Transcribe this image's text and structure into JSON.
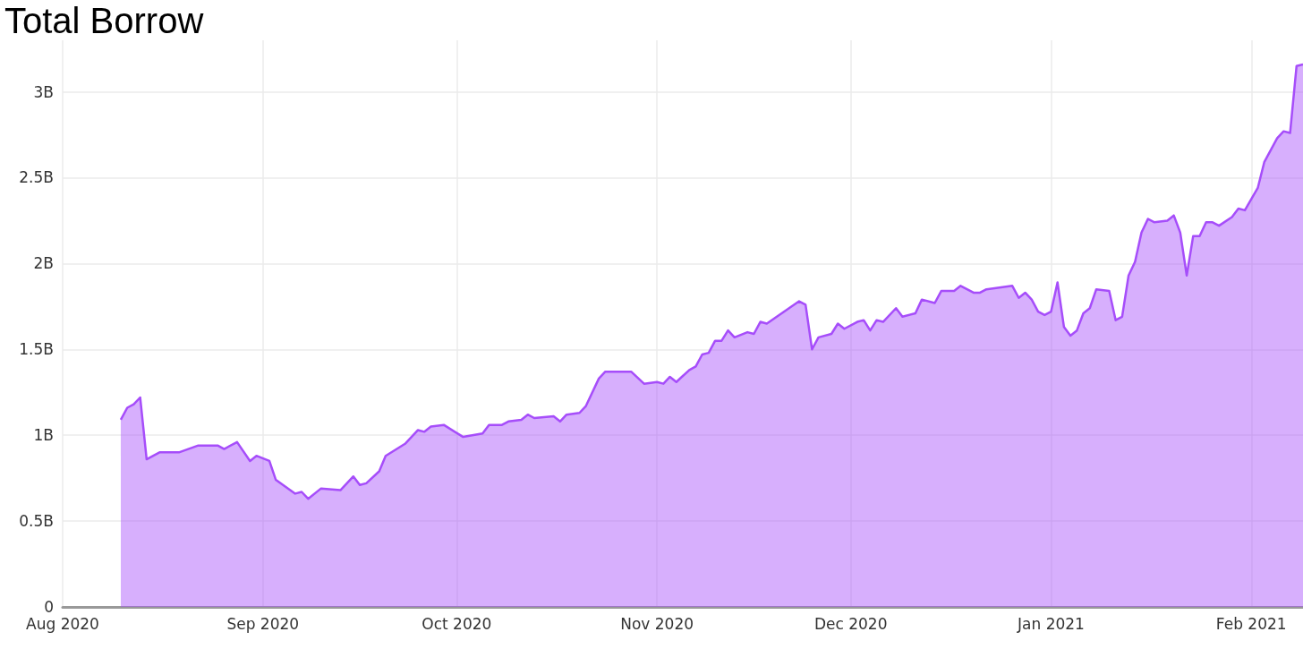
{
  "chart_data": {
    "type": "area",
    "title": "Total Borrow",
    "grid": true,
    "xlim": [
      "2020-08-01",
      "2021-02-09"
    ],
    "xticks": [
      {
        "value": "2020-08-01",
        "label": "Aug 2020"
      },
      {
        "value": "2020-09-01",
        "label": "Sep 2020"
      },
      {
        "value": "2020-10-01",
        "label": "Oct 2020"
      },
      {
        "value": "2020-11-01",
        "label": "Nov 2020"
      },
      {
        "value": "2020-12-01",
        "label": "Dec 2020"
      },
      {
        "value": "2021-01-01",
        "label": "Jan 2021"
      },
      {
        "value": "2021-02-01",
        "label": "Feb 2021"
      }
    ],
    "ylim": [
      0,
      3.3
    ],
    "yticks": [
      0,
      {
        "value": 0.5,
        "label": "0.5B"
      },
      {
        "value": 1,
        "label": "1B"
      },
      {
        "value": 1.5,
        "label": "1.5B"
      },
      {
        "value": 2,
        "label": "2B"
      },
      {
        "value": 2.5,
        "label": "2.5B"
      },
      {
        "value": 3,
        "label": "3B"
      }
    ],
    "x": [
      "2020-08-10",
      "2020-08-11",
      "2020-08-12",
      "2020-08-13",
      "2020-08-14",
      "2020-08-16",
      "2020-08-19",
      "2020-08-22",
      "2020-08-25",
      "2020-08-26",
      "2020-08-28",
      "2020-08-30",
      "2020-08-31",
      "2020-09-02",
      "2020-09-03",
      "2020-09-06",
      "2020-09-07",
      "2020-09-08",
      "2020-09-10",
      "2020-09-13",
      "2020-09-15",
      "2020-09-16",
      "2020-09-17",
      "2020-09-19",
      "2020-09-20",
      "2020-09-23",
      "2020-09-25",
      "2020-09-26",
      "2020-09-27",
      "2020-09-29",
      "2020-10-02",
      "2020-10-05",
      "2020-10-06",
      "2020-10-08",
      "2020-10-09",
      "2020-10-11",
      "2020-10-12",
      "2020-10-13",
      "2020-10-16",
      "2020-10-17",
      "2020-10-18",
      "2020-10-20",
      "2020-10-21",
      "2020-10-23",
      "2020-10-24",
      "2020-10-28",
      "2020-10-30",
      "2020-11-01",
      "2020-11-02",
      "2020-11-03",
      "2020-11-04",
      "2020-11-06",
      "2020-11-07",
      "2020-11-08",
      "2020-11-09",
      "2020-11-10",
      "2020-11-11",
      "2020-11-12",
      "2020-11-13",
      "2020-11-15",
      "2020-11-16",
      "2020-11-17",
      "2020-11-18",
      "2020-11-23",
      "2020-11-24",
      "2020-11-25",
      "2020-11-26",
      "2020-11-28",
      "2020-11-29",
      "2020-11-30",
      "2020-12-02",
      "2020-12-03",
      "2020-12-04",
      "2020-12-05",
      "2020-12-06",
      "2020-12-08",
      "2020-12-09",
      "2020-12-11",
      "2020-12-12",
      "2020-12-14",
      "2020-12-15",
      "2020-12-17",
      "2020-12-18",
      "2020-12-20",
      "2020-12-21",
      "2020-12-22",
      "2020-12-24",
      "2020-12-26",
      "2020-12-27",
      "2020-12-28",
      "2020-12-29",
      "2020-12-30",
      "2020-12-31",
      "2021-01-01",
      "2021-01-02",
      "2021-01-03",
      "2021-01-04",
      "2021-01-05",
      "2021-01-06",
      "2021-01-07",
      "2021-01-08",
      "2021-01-10",
      "2021-01-11",
      "2021-01-12",
      "2021-01-13",
      "2021-01-14",
      "2021-01-15",
      "2021-01-16",
      "2021-01-17",
      "2021-01-19",
      "2021-01-20",
      "2021-01-21",
      "2021-01-22",
      "2021-01-23",
      "2021-01-24",
      "2021-01-25",
      "2021-01-26",
      "2021-01-27",
      "2021-01-29",
      "2021-01-30",
      "2021-01-31",
      "2021-02-02",
      "2021-02-03",
      "2021-02-05",
      "2021-02-06",
      "2021-02-07",
      "2021-02-08",
      "2021-02-09"
    ],
    "series": [
      {
        "color": "#a64dfa",
        "values": [
          1.09,
          1.16,
          1.18,
          1.22,
          0.86,
          0.9,
          0.9,
          0.94,
          0.94,
          0.92,
          0.96,
          0.85,
          0.88,
          0.85,
          0.74,
          0.66,
          0.67,
          0.63,
          0.69,
          0.68,
          0.76,
          0.71,
          0.72,
          0.79,
          0.88,
          0.95,
          1.03,
          1.02,
          1.05,
          1.06,
          0.99,
          1.01,
          1.06,
          1.06,
          1.08,
          1.09,
          1.12,
          1.1,
          1.11,
          1.08,
          1.12,
          1.13,
          1.17,
          1.33,
          1.37,
          1.37,
          1.3,
          1.31,
          1.3,
          1.34,
          1.31,
          1.38,
          1.4,
          1.47,
          1.48,
          1.55,
          1.55,
          1.61,
          1.57,
          1.6,
          1.59,
          1.66,
          1.65,
          1.78,
          1.76,
          1.5,
          1.57,
          1.59,
          1.65,
          1.62,
          1.66,
          1.67,
          1.61,
          1.67,
          1.66,
          1.74,
          1.69,
          1.71,
          1.79,
          1.77,
          1.84,
          1.84,
          1.87,
          1.83,
          1.83,
          1.85,
          1.86,
          1.87,
          1.8,
          1.83,
          1.79,
          1.72,
          1.7,
          1.72,
          1.89,
          1.63,
          1.58,
          1.61,
          1.71,
          1.74,
          1.85,
          1.84,
          1.67,
          1.69,
          1.93,
          2.01,
          2.18,
          2.26,
          2.24,
          2.25,
          2.28,
          2.18,
          1.93,
          2.16,
          2.16,
          2.24,
          2.24,
          2.22,
          2.27,
          2.32,
          2.31,
          2.44,
          2.59,
          2.73,
          2.77,
          2.76,
          3.15,
          3.16
        ]
      }
    ]
  }
}
